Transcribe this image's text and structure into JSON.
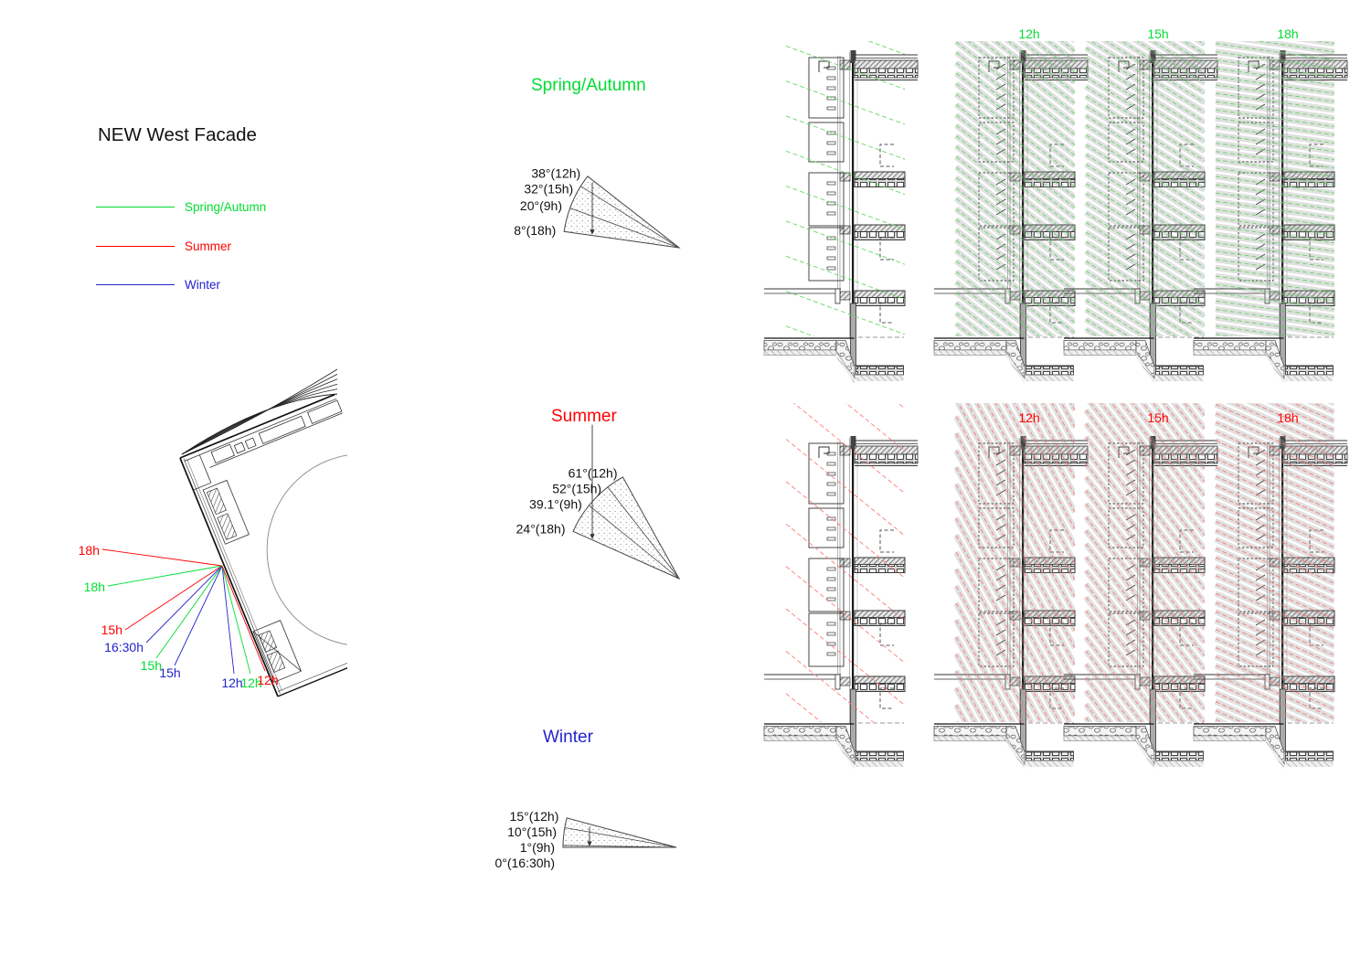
{
  "title": "NEW West Facade",
  "colors": {
    "spring": "#00dd32",
    "summer": "#ff0000",
    "winter": "#2323cc",
    "spring_ray": "#5cd65c",
    "summer_ray": "#ff7373",
    "shade": "#9a9a9a",
    "ink": "#111111"
  },
  "legend": {
    "items": [
      {
        "label": "Spring/Autumn",
        "season": "spring"
      },
      {
        "label": "Summer",
        "season": "summer"
      },
      {
        "label": "Winter",
        "season": "winter"
      }
    ]
  },
  "plan": {
    "rays": [
      {
        "time": "18h",
        "season": "summer"
      },
      {
        "time": "18h",
        "season": "spring"
      },
      {
        "time": "15h",
        "season": "summer"
      },
      {
        "time": "16:30h",
        "season": "winter"
      },
      {
        "time": "15h",
        "season": "spring"
      },
      {
        "time": "15h",
        "season": "winter"
      },
      {
        "time": "12h",
        "season": "winter"
      },
      {
        "time": "12h",
        "season": "spring"
      },
      {
        "time": "12h",
        "season": "summer"
      }
    ]
  },
  "fans": [
    {
      "title": "Spring/Autumn",
      "season": "spring",
      "labels": [
        {
          "text": "38°(12h)",
          "angle": 38
        },
        {
          "text": "32°(15h)",
          "angle": 32
        },
        {
          "text": "20°(9h)",
          "angle": 20
        },
        {
          "text": "8°(18h)",
          "angle": 8
        }
      ]
    },
    {
      "title": "Summer",
      "season": "summer",
      "labels": [
        {
          "text": "61°(12h)",
          "angle": 61
        },
        {
          "text": "52°(15h)",
          "angle": 52
        },
        {
          "text": "39.1°(9h)",
          "angle": 39.1
        },
        {
          "text": "24°(18h)",
          "angle": 24
        }
      ]
    },
    {
      "title": "Winter",
      "season": "winter",
      "labels": [
        {
          "text": "15°(12h)",
          "angle": 15
        },
        {
          "text": "10°(15h)",
          "angle": 10
        },
        {
          "text": "1°(9h)",
          "angle": 1
        },
        {
          "text": "0°(16:30h)",
          "angle": 0
        }
      ]
    }
  ],
  "sections": {
    "rows": [
      {
        "season": "spring",
        "header_labels": [
          {
            "text": "12h"
          },
          {
            "text": "15h"
          },
          {
            "text": "18h"
          }
        ],
        "columns": [
          {
            "time": "9h",
            "angle": 20
          },
          {
            "time": "12h",
            "angle": 38
          },
          {
            "time": "15h",
            "angle": 32
          },
          {
            "time": "18h",
            "angle": 8
          }
        ]
      },
      {
        "season": "summer",
        "header_labels": [
          {
            "text": "12h"
          },
          {
            "text": "15h"
          },
          {
            "text": "18h"
          }
        ],
        "columns": [
          {
            "time": "9h",
            "angle": 39.1
          },
          {
            "time": "12h",
            "angle": 61
          },
          {
            "time": "15h",
            "angle": 52
          },
          {
            "time": "18h",
            "angle": 24
          }
        ]
      }
    ]
  }
}
